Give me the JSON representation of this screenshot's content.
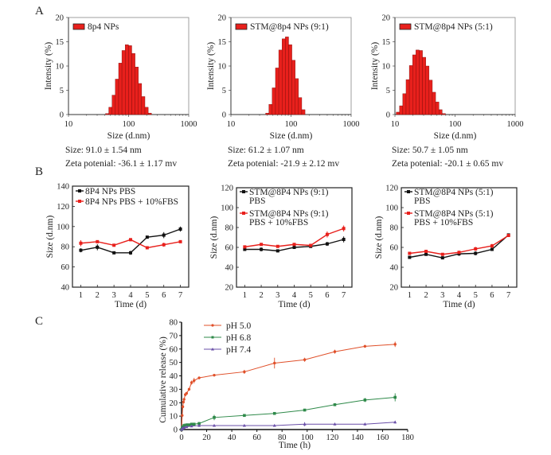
{
  "colors": {
    "bar_fill": "#e8201c",
    "bar_edge": "#7a0a08",
    "axis": "#444444",
    "series_black": "#111111",
    "series_red": "#e8201c",
    "ph50": "#e0502a",
    "ph68": "#2f8a4a",
    "ph74": "#6a4fa8"
  },
  "panel_labels": {
    "a": "A",
    "b": "B",
    "c": "C"
  },
  "chart_data": [
    {
      "id": "A1",
      "type": "bar",
      "title": "",
      "legend": "8p4 NPs",
      "xlabel": "Size (d.nm)",
      "ylabel": "Intensity (%)",
      "xscale": "log",
      "xlim": [
        10,
        1000
      ],
      "ylim": [
        0,
        20
      ],
      "xticks": [
        "10",
        "100",
        "1000"
      ],
      "yticks": [
        "0",
        "5",
        "10",
        "15",
        "20"
      ],
      "bins": [
        25,
        28.3,
        32.1,
        36.4,
        41.3,
        46.8,
        53.1,
        60.2,
        68.3,
        77.4,
        87.8,
        99.6,
        112.9,
        128.1,
        145.3,
        164.8,
        186.9,
        212.0,
        240.4,
        272.7,
        309.3
      ],
      "values": [
        0.2,
        1.5,
        4.0,
        7.3,
        10.6,
        13.2,
        14.4,
        14.2,
        12.6,
        9.8,
        6.4,
        3.7,
        1.5,
        0.3
      ],
      "first_bin_index": 5,
      "notes": [
        "Size: 91.0 ± 1.54 nm",
        "Zeta potenial: -36.1 ± 1.17 mv"
      ]
    },
    {
      "id": "A2",
      "type": "bar",
      "legend": "STM@8p4 NPs (9:1)",
      "xlabel": "Size (d.nm)",
      "ylabel": "Intensity (%)",
      "xscale": "log",
      "xlim": [
        10,
        1000
      ],
      "ylim": [
        0,
        20
      ],
      "xticks": [
        "10",
        "100",
        "1000"
      ],
      "yticks": [
        "0",
        "5",
        "10",
        "15",
        "20"
      ],
      "values": [
        0.3,
        2.1,
        5.5,
        9.6,
        13.3,
        15.6,
        16.0,
        14.4,
        11.2,
        7.4,
        3.5,
        1.0
      ],
      "first_edge": 37.8,
      "bin_ratio": 1.134,
      "notes": [
        "Size: 61.2 ± 1.07 nm",
        "Zeta potenial: -21.9 ± 2.12 mv"
      ]
    },
    {
      "id": "A3",
      "type": "bar",
      "legend": "STM@8p4 NPs (5:1)",
      "xlabel": "Size (d.nm)",
      "ylabel": "Intensity (%)",
      "xscale": "log",
      "xlim": [
        10,
        1000
      ],
      "ylim": [
        0,
        20
      ],
      "xticks": [
        "10",
        "100",
        "1000"
      ],
      "yticks": [
        "0",
        "5",
        "10",
        "15",
        "20"
      ],
      "values": [
        0.5,
        1.8,
        4.3,
        7.2,
        10.1,
        12.3,
        13.3,
        13.2,
        11.8,
        10.0,
        7.1,
        4.6,
        2.6,
        1.0,
        0.2
      ],
      "first_edge": 10.5,
      "bin_ratio": 1.134,
      "notes": [
        "Size: 50.7 ± 1.05 nm",
        "Zeta potenial: -20.1 ± 0.65 mv"
      ]
    },
    {
      "id": "B1",
      "type": "line",
      "xlabel": "Time (d)",
      "ylabel": "Size (d.nm)",
      "x": [
        1,
        2,
        3,
        4,
        5,
        6,
        7
      ],
      "xlim": [
        0.5,
        7.5
      ],
      "ylim": [
        40,
        140
      ],
      "yticks": [
        "40",
        "60",
        "80",
        "100",
        "120",
        "140"
      ],
      "xticks": [
        "1",
        "2",
        "3",
        "4",
        "5",
        "6",
        "7"
      ],
      "series": [
        {
          "name": "8P4 NPs PBS",
          "color": "black",
          "values": [
            76.5,
            79.5,
            74,
            74,
            89.5,
            91.5,
            97.5
          ],
          "err": [
            2,
            3,
            1,
            2,
            1,
            3,
            2.5
          ]
        },
        {
          "name": "8P4 NPs PBS + 10%FBS",
          "color": "red",
          "values": [
            83.5,
            85,
            81.5,
            87,
            79,
            82,
            85
          ],
          "err": [
            3,
            1,
            1,
            1.5,
            1,
            2,
            1
          ]
        }
      ]
    },
    {
      "id": "B2",
      "type": "line",
      "xlabel": "Time (d)",
      "ylabel": "Size (d.nm)",
      "x": [
        1,
        2,
        3,
        4,
        5,
        6,
        7
      ],
      "xlim": [
        0.5,
        7.5
      ],
      "ylim": [
        20,
        120
      ],
      "yticks": [
        "20",
        "40",
        "60",
        "80",
        "100",
        "120"
      ],
      "xticks": [
        "1",
        "2",
        "3",
        "4",
        "5",
        "6",
        "7"
      ],
      "series": [
        {
          "name": "STM@8P4 NPs (9:1)\nPBS",
          "color": "black",
          "values": [
            58,
            58,
            56.5,
            60,
            61,
            63.5,
            68
          ],
          "err": [
            1.5,
            2,
            1,
            1,
            1,
            2,
            3
          ]
        },
        {
          "name": "STM@8P4 NPs (9:1)\nPBS + 10%FBS",
          "color": "red",
          "values": [
            60.5,
            63,
            61,
            63,
            62,
            73,
            79
          ],
          "err": [
            1,
            1,
            1,
            1,
            1,
            3,
            3
          ]
        }
      ]
    },
    {
      "id": "B3",
      "type": "line",
      "xlabel": "Time (d)",
      "ylabel": "Size (d.nm)",
      "x": [
        1,
        2,
        3,
        4,
        5,
        6,
        7
      ],
      "xlim": [
        0.5,
        7.5
      ],
      "ylim": [
        20,
        120
      ],
      "yticks": [
        "20",
        "40",
        "60",
        "80",
        "100",
        "120"
      ],
      "xticks": [
        "1",
        "2",
        "3",
        "4",
        "5",
        "6",
        "7"
      ],
      "series": [
        {
          "name": "STM@8P4 NPs (5:1)\nPBS",
          "color": "black",
          "values": [
            50,
            53,
            49.5,
            53.5,
            54,
            58,
            72.5
          ],
          "err": [
            1,
            1,
            1.5,
            2,
            2,
            1,
            0.5
          ]
        },
        {
          "name": "STM@8P4 NPs (5:1)\nPBS + 10%FBS",
          "color": "red",
          "values": [
            54,
            56,
            53,
            55,
            58.5,
            61.5,
            72
          ],
          "err": [
            1,
            1,
            1,
            1.5,
            2,
            2,
            0.5
          ]
        }
      ]
    },
    {
      "id": "C",
      "type": "line",
      "xlabel": "Time (h)",
      "ylabel": "Cumulative release (%)",
      "xlim": [
        0,
        180
      ],
      "ylim": [
        0,
        80
      ],
      "xticks": [
        "0",
        "20",
        "40",
        "60",
        "80",
        "100",
        "120",
        "140",
        "160",
        "180"
      ],
      "yticks": [
        "0",
        "10",
        "20",
        "30",
        "40",
        "50",
        "60",
        "70",
        "80"
      ],
      "series": [
        {
          "name": "pH 5.0",
          "color": "ph50",
          "x": [
            0,
            0.5,
            1,
            1.5,
            2,
            3,
            4,
            6,
            8,
            10,
            14,
            26,
            50,
            74,
            98,
            122,
            146,
            170
          ],
          "values": [
            0,
            10.5,
            17,
            20.5,
            22.5,
            26,
            27,
            30,
            35,
            36.5,
            38.5,
            40.5,
            43,
            49.5,
            52,
            58,
            62,
            63.5
          ],
          "err": [
            0,
            1,
            1,
            1,
            1,
            1,
            1,
            1,
            1.5,
            2,
            1,
            0.5,
            1.5,
            4,
            1.5,
            1.5,
            1,
            2
          ]
        },
        {
          "name": "pH 6.8",
          "color": "ph68",
          "x": [
            0,
            0.5,
            1,
            2,
            4,
            6,
            8,
            10,
            14,
            26,
            50,
            74,
            98,
            122,
            146,
            170
          ],
          "values": [
            0,
            1,
            2,
            3,
            3.5,
            3.5,
            4,
            4,
            4.5,
            9,
            10.5,
            12,
            14.5,
            18.5,
            22,
            24
          ],
          "err": [
            0,
            0.5,
            0.5,
            1.5,
            0.5,
            0.5,
            0.5,
            0.5,
            1,
            2,
            0.5,
            0.5,
            0.5,
            0.5,
            1.5,
            3
          ]
        },
        {
          "name": "pH 7.4",
          "color": "ph74",
          "x": [
            0,
            0.5,
            1,
            2,
            4,
            8,
            14,
            26,
            50,
            74,
            98,
            122,
            146,
            170
          ],
          "values": [
            0,
            0.5,
            1,
            1.5,
            2,
            2.5,
            3,
            3,
            3,
            3,
            4,
            4,
            4,
            5.5
          ],
          "err": [
            0,
            0.3,
            0.3,
            0.5,
            0.5,
            0.5,
            1,
            0.3,
            0.3,
            0.3,
            1.5,
            0.5,
            0.5,
            1
          ]
        }
      ]
    }
  ]
}
